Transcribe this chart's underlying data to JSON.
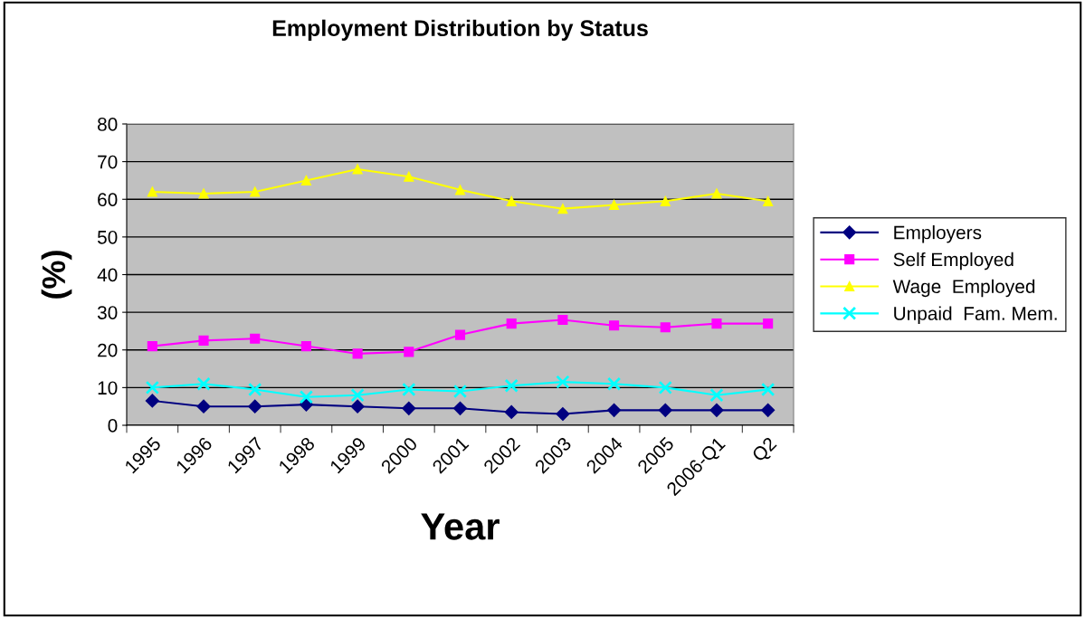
{
  "chart_data": {
    "type": "line",
    "title": "Employment Distribution by Status",
    "xlabel": "Year",
    "ylabel": "(%)",
    "categories": [
      "1995",
      "1996",
      "1997",
      "1998",
      "1999",
      "2000",
      "2001",
      "2002",
      "2003",
      "2004",
      "2005",
      "2006-Q1",
      "Q2"
    ],
    "series": [
      {
        "name": "Employers",
        "color": "#000080",
        "marker": "diamond",
        "values": [
          6.5,
          5,
          5,
          5.5,
          5,
          4.5,
          4.5,
          3.5,
          3,
          4,
          4,
          4,
          4
        ]
      },
      {
        "name": "Self Employed",
        "color": "#ff00ff",
        "marker": "square",
        "values": [
          21,
          22.5,
          23,
          21,
          19,
          19.5,
          24,
          27,
          28,
          26.5,
          26,
          27,
          27
        ]
      },
      {
        "name": "Wage  Employed",
        "color": "#ffff00",
        "marker": "triangle",
        "values": [
          62,
          61.5,
          62,
          65,
          68,
          66,
          62.5,
          59.5,
          57.5,
          58.5,
          59.5,
          61.5,
          59.5
        ]
      },
      {
        "name": "Unpaid  Fam. Mem.",
        "color": "#00ffff",
        "marker": "cross",
        "values": [
          10,
          11,
          9.5,
          7.5,
          8,
          9.5,
          9,
          10.5,
          11.5,
          11,
          10,
          8,
          9.5
        ]
      }
    ],
    "ylim": [
      0,
      80
    ],
    "yticks": [
      0,
      10,
      20,
      30,
      40,
      50,
      60,
      70,
      80
    ],
    "grid": "y",
    "legend": "right",
    "line_style": "solid"
  }
}
